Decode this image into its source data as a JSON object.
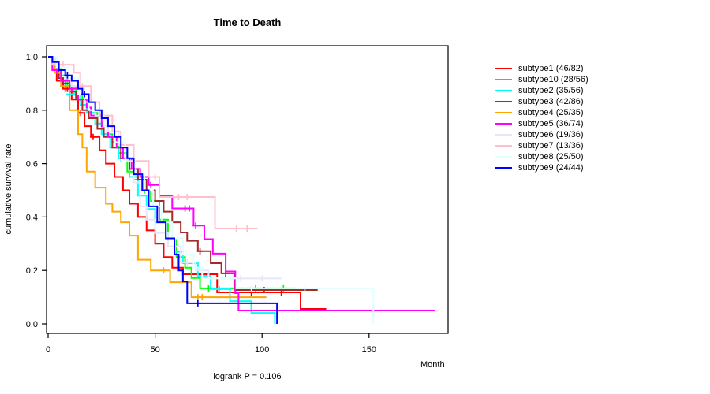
{
  "chart_data": {
    "type": "line",
    "chart_kind": "kaplan-meier-step",
    "title": "Time to Death",
    "xlabel": "Month",
    "ylabel": "cumulative survival rate",
    "subtitle": "logrank P = 0.106",
    "xlim": [
      0,
      187
    ],
    "ylim": [
      0,
      1
    ],
    "xticks": [
      0,
      50,
      100,
      150
    ],
    "xtick_labels": [
      "0",
      "50",
      "100",
      "150"
    ],
    "yticks": [
      0,
      0.2,
      0.4,
      0.6,
      0.8,
      1
    ],
    "ytick_labels": [
      "0.0",
      "0.2",
      "0.4",
      "0.6",
      "0.8",
      "1.0"
    ],
    "grid": false,
    "legend_position": "right",
    "axis_color": "#000000",
    "background": "#ffffff",
    "series": [
      {
        "name": "subtype1",
        "label": "subtype1 (46/82)",
        "color": "#FF0000",
        "deaths": 46,
        "n": 82,
        "points": [
          [
            0,
            1
          ],
          [
            2,
            0.95
          ],
          [
            4,
            0.91
          ],
          [
            7,
            0.88
          ],
          [
            11,
            0.84
          ],
          [
            14,
            0.79
          ],
          [
            17,
            0.74
          ],
          [
            20,
            0.7
          ],
          [
            24,
            0.65
          ],
          [
            27,
            0.6
          ],
          [
            31,
            0.55
          ],
          [
            35,
            0.5
          ],
          [
            38,
            0.45
          ],
          [
            42,
            0.4
          ],
          [
            46,
            0.35
          ],
          [
            50,
            0.3
          ],
          [
            54,
            0.25
          ],
          [
            58,
            0.21
          ],
          [
            63,
            0.186
          ],
          [
            79,
            0.118
          ],
          [
            118,
            0.056
          ],
          [
            130,
            0.056
          ]
        ],
        "censors": [
          [
            8,
            0.88
          ],
          [
            9,
            0.88
          ],
          [
            15,
            0.79
          ],
          [
            21,
            0.7
          ],
          [
            85,
            0.118
          ],
          [
            95,
            0.118
          ],
          [
            109,
            0.118
          ]
        ]
      },
      {
        "name": "subtype10",
        "label": "subtype10 (28/56)",
        "color": "#00FF00",
        "deaths": 28,
        "n": 56,
        "points": [
          [
            0,
            1
          ],
          [
            3,
            0.96
          ],
          [
            6,
            0.93
          ],
          [
            9,
            0.89
          ],
          [
            13,
            0.86
          ],
          [
            16,
            0.82
          ],
          [
            19,
            0.79
          ],
          [
            23,
            0.75
          ],
          [
            26,
            0.71
          ],
          [
            30,
            0.68
          ],
          [
            33,
            0.64
          ],
          [
            37,
            0.57
          ],
          [
            40,
            0.54
          ],
          [
            44,
            0.5
          ],
          [
            48,
            0.46
          ],
          [
            52,
            0.39
          ],
          [
            56,
            0.32
          ],
          [
            60,
            0.25
          ],
          [
            64,
            0.21
          ],
          [
            67,
            0.172
          ],
          [
            71,
            0.133
          ],
          [
            116,
            0.133
          ]
        ],
        "censors": [
          [
            45,
            0.5
          ],
          [
            75,
            0.133
          ],
          [
            97,
            0.133
          ],
          [
            110,
            0.133
          ]
        ]
      },
      {
        "name": "subtype2",
        "label": "subtype2 (35/56)",
        "color": "#00FFFF",
        "deaths": 35,
        "n": 56,
        "points": [
          [
            0,
            1
          ],
          [
            3,
            0.96
          ],
          [
            5,
            0.93
          ],
          [
            8,
            0.89
          ],
          [
            12,
            0.86
          ],
          [
            15,
            0.82
          ],
          [
            18,
            0.79
          ],
          [
            22,
            0.75
          ],
          [
            25,
            0.71
          ],
          [
            29,
            0.66
          ],
          [
            33,
            0.62
          ],
          [
            38,
            0.55
          ],
          [
            42,
            0.48
          ],
          [
            46,
            0.43
          ],
          [
            50,
            0.38
          ],
          [
            55,
            0.32
          ],
          [
            59,
            0.27
          ],
          [
            63,
            0.227
          ],
          [
            70,
            0.18
          ],
          [
            76,
            0.13
          ],
          [
            85,
            0.085
          ],
          [
            95,
            0.041
          ],
          [
            106,
            0.0
          ]
        ],
        "censors": [
          [
            10,
            0.86
          ],
          [
            34,
            0.62
          ],
          [
            80,
            0.13
          ]
        ]
      },
      {
        "name": "subtype3",
        "label": "subtype3 (42/86)",
        "color": "#A52A2A",
        "deaths": 42,
        "n": 86,
        "points": [
          [
            0,
            1
          ],
          [
            2,
            0.95
          ],
          [
            5,
            0.92
          ],
          [
            7,
            0.9
          ],
          [
            10,
            0.87
          ],
          [
            13,
            0.84
          ],
          [
            16,
            0.8
          ],
          [
            19,
            0.77
          ],
          [
            23,
            0.73
          ],
          [
            26,
            0.7
          ],
          [
            30,
            0.66
          ],
          [
            34,
            0.62
          ],
          [
            38,
            0.58
          ],
          [
            42,
            0.54
          ],
          [
            46,
            0.5
          ],
          [
            50,
            0.46
          ],
          [
            54,
            0.42
          ],
          [
            58,
            0.38
          ],
          [
            62,
            0.342
          ],
          [
            65,
            0.311
          ],
          [
            70,
            0.272
          ],
          [
            76,
            0.227
          ],
          [
            81,
            0.189
          ],
          [
            87,
            0.127
          ],
          [
            126,
            0.127
          ]
        ],
        "censors": [
          [
            8,
            0.9
          ],
          [
            71,
            0.272
          ],
          [
            83,
            0.189
          ],
          [
            95,
            0.127
          ],
          [
            101,
            0.127
          ]
        ]
      },
      {
        "name": "subtype4",
        "label": "subtype4 (25/35)",
        "color": "#FFA500",
        "deaths": 25,
        "n": 35,
        "points": [
          [
            0,
            1
          ],
          [
            3,
            0.94
          ],
          [
            6,
            0.89
          ],
          [
            10,
            0.8
          ],
          [
            14,
            0.71
          ],
          [
            16,
            0.66
          ],
          [
            18,
            0.57
          ],
          [
            22,
            0.51
          ],
          [
            27,
            0.45
          ],
          [
            30,
            0.42
          ],
          [
            34,
            0.38
          ],
          [
            38,
            0.33
          ],
          [
            42,
            0.24
          ],
          [
            48,
            0.2
          ],
          [
            57,
            0.156
          ],
          [
            67,
            0.1
          ],
          [
            102,
            0.1
          ]
        ],
        "censors": [
          [
            54,
            0.2
          ],
          [
            70,
            0.1
          ],
          [
            72,
            0.1
          ]
        ]
      },
      {
        "name": "subtype5",
        "label": "subtype5 (36/74)",
        "color": "#FF00FF",
        "deaths": 36,
        "n": 74,
        "points": [
          [
            0,
            1
          ],
          [
            2,
            0.95
          ],
          [
            6,
            0.91
          ],
          [
            10,
            0.88
          ],
          [
            14,
            0.84
          ],
          [
            18,
            0.81
          ],
          [
            20,
            0.78
          ],
          [
            25,
            0.74
          ],
          [
            28,
            0.7
          ],
          [
            32,
            0.66
          ],
          [
            35,
            0.62
          ],
          [
            39,
            0.58
          ],
          [
            43,
            0.55
          ],
          [
            47,
            0.52
          ],
          [
            52,
            0.48
          ],
          [
            58,
            0.432
          ],
          [
            68,
            0.368
          ],
          [
            73,
            0.317
          ],
          [
            77,
            0.263
          ],
          [
            83,
            0.196
          ],
          [
            87.5,
            0.115
          ],
          [
            89,
            0.05
          ],
          [
            181,
            0.05
          ]
        ],
        "censors": [
          [
            4,
            0.95
          ],
          [
            11,
            0.88
          ],
          [
            48,
            0.52
          ],
          [
            64,
            0.432
          ],
          [
            66,
            0.432
          ],
          [
            69,
            0.368
          ],
          [
            152,
            0.05
          ]
        ]
      },
      {
        "name": "subtype6",
        "label": "subtype6 (19/36)",
        "color": "#E6E6FA",
        "deaths": 19,
        "n": 36,
        "points": [
          [
            0,
            1
          ],
          [
            3,
            0.97
          ],
          [
            8,
            0.92
          ],
          [
            11,
            0.89
          ],
          [
            17,
            0.83
          ],
          [
            22,
            0.78
          ],
          [
            28,
            0.72
          ],
          [
            33,
            0.67
          ],
          [
            37,
            0.61
          ],
          [
            40,
            0.53
          ],
          [
            43,
            0.44
          ],
          [
            46,
            0.39
          ],
          [
            50,
            0.34
          ],
          [
            56,
            0.29
          ],
          [
            62,
            0.23
          ],
          [
            69,
            0.2
          ],
          [
            75,
            0.17
          ],
          [
            109,
            0.17
          ]
        ],
        "censors": [
          [
            65,
            0.23
          ],
          [
            90,
            0.17
          ],
          [
            100,
            0.17
          ]
        ]
      },
      {
        "name": "subtype7",
        "label": "subtype7 (13/36)",
        "color": "#FFC0CB",
        "deaths": 13,
        "n": 36,
        "points": [
          [
            0,
            1
          ],
          [
            2,
            0.97
          ],
          [
            12,
            0.94
          ],
          [
            15,
            0.89
          ],
          [
            20,
            0.83
          ],
          [
            24,
            0.78
          ],
          [
            30,
            0.72
          ],
          [
            34,
            0.67
          ],
          [
            40,
            0.61
          ],
          [
            47,
            0.55
          ],
          [
            52,
            0.475
          ],
          [
            78,
            0.357
          ],
          [
            98,
            0.357
          ]
        ],
        "censors": [
          [
            5,
            0.97
          ],
          [
            7,
            0.97
          ],
          [
            16,
            0.89
          ],
          [
            50,
            0.55
          ],
          [
            61,
            0.475
          ],
          [
            65,
            0.475
          ],
          [
            88,
            0.357
          ],
          [
            93,
            0.357
          ]
        ]
      },
      {
        "name": "subtype8",
        "label": "subtype8 (25/50)",
        "color": "#E0FFFF",
        "deaths": 25,
        "n": 50,
        "points": [
          [
            0,
            1
          ],
          [
            4,
            0.96
          ],
          [
            9,
            0.92
          ],
          [
            14,
            0.86
          ],
          [
            19,
            0.8
          ],
          [
            26,
            0.74
          ],
          [
            31,
            0.68
          ],
          [
            36,
            0.62
          ],
          [
            41,
            0.56
          ],
          [
            45,
            0.5
          ],
          [
            49,
            0.44
          ],
          [
            53,
            0.38
          ],
          [
            58,
            0.32
          ],
          [
            63,
            0.26
          ],
          [
            68,
            0.21
          ],
          [
            72,
            0.171
          ],
          [
            88,
            0.133
          ],
          [
            152,
            0.0
          ]
        ],
        "censors": [
          [
            95,
            0.133
          ],
          [
            120,
            0.133
          ]
        ]
      },
      {
        "name": "subtype9",
        "label": "subtype9 (24/44)",
        "color": "#0000FF",
        "deaths": 24,
        "n": 44,
        "points": [
          [
            0,
            1
          ],
          [
            2,
            0.98
          ],
          [
            5,
            0.95
          ],
          [
            8,
            0.93
          ],
          [
            11,
            0.91
          ],
          [
            14,
            0.88
          ],
          [
            16,
            0.86
          ],
          [
            19,
            0.83
          ],
          [
            22,
            0.8
          ],
          [
            25,
            0.77
          ],
          [
            28,
            0.74
          ],
          [
            31,
            0.7
          ],
          [
            34,
            0.66
          ],
          [
            37,
            0.62
          ],
          [
            40,
            0.56
          ],
          [
            44,
            0.5
          ],
          [
            47,
            0.44
          ],
          [
            51,
            0.38
          ],
          [
            55,
            0.32
          ],
          [
            59,
            0.26
          ],
          [
            61,
            0.2
          ],
          [
            63,
            0.159
          ],
          [
            65,
            0.077
          ],
          [
            107,
            0.0
          ]
        ],
        "censors": [
          [
            9,
            0.93
          ],
          [
            17,
            0.86
          ],
          [
            70,
            0.077
          ]
        ]
      }
    ]
  }
}
